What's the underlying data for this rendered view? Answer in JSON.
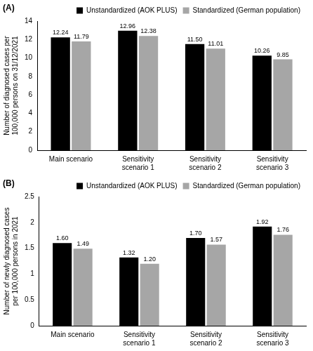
{
  "chart_data": [
    {
      "type": "bar",
      "title": "(A)",
      "y_label": "Number of diagnosed cases per 100,000 persons on 31/12/2021",
      "categories": [
        "Main scenario",
        "Sensitivity scenario 1",
        "Sensitivity scenario 2",
        "Sensitivity scenario 3"
      ],
      "series": [
        {
          "name": "Unstandardized (AOK PLUS)",
          "color": "#000000",
          "values": [
            12.24,
            12.96,
            11.5,
            10.26
          ],
          "value_labels": [
            "12.24",
            "12.96",
            "11.50",
            "10.26"
          ]
        },
        {
          "name": "Standardized (German population)",
          "color": "#a6a6a6",
          "values": [
            11.79,
            12.38,
            11.01,
            9.85
          ],
          "value_labels": [
            "11.79",
            "12.38",
            "11.01",
            "9.85"
          ]
        }
      ],
      "ylim": [
        0,
        14
      ],
      "yticks": [
        0,
        2,
        4,
        6,
        8,
        10,
        12,
        14
      ],
      "grid": false,
      "legend": "top",
      "data_labels": true
    },
    {
      "type": "bar",
      "title": "(B)",
      "y_label": "Number of newly diagnosed cases per 100,000 persons in 2021",
      "categories": [
        "Main scenario",
        "Sensitivity scenario 1",
        "Sensitivity scenario 2",
        "Sensitivity scenario 3"
      ],
      "series": [
        {
          "name": "Unstandardized (AOK PLUS)",
          "color": "#000000",
          "values": [
            1.6,
            1.32,
            1.7,
            1.92
          ],
          "value_labels": [
            "1.60",
            "1.32",
            "1.70",
            "1.92"
          ]
        },
        {
          "name": "Standardized (German population)",
          "color": "#a6a6a6",
          "values": [
            1.49,
            1.2,
            1.57,
            1.76
          ],
          "value_labels": [
            "1.49",
            "1.20",
            "1.57",
            "1.76"
          ]
        }
      ],
      "ylim": [
        0,
        2.5
      ],
      "yticks": [
        0,
        0.5,
        1,
        1.5,
        2,
        2.5
      ],
      "grid": false,
      "legend": "top",
      "data_labels": true
    }
  ]
}
